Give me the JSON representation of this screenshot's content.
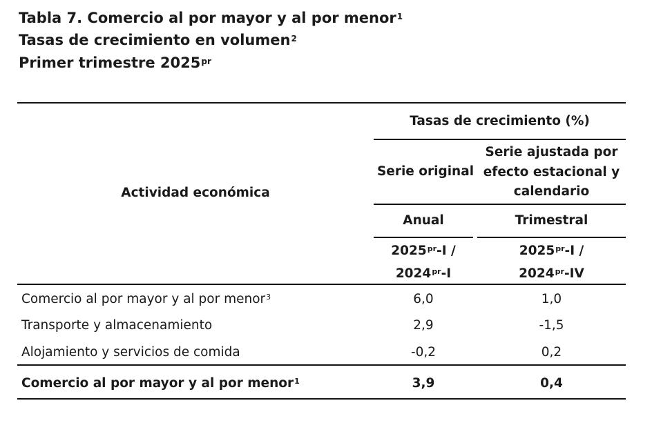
{
  "title": {
    "line1": "Tabla 7. Comercio al por mayor y al por menor",
    "line1_sup": "1",
    "line2": "Tasas de crecimiento en volumen",
    "line2_sup": "2",
    "line3": "Primer trimestre 2025",
    "line3_sup": "pr"
  },
  "header": {
    "group": "Tasas de crecimiento (%)",
    "activity": "Actividad económica",
    "col1": "Serie original",
    "col2_l1": "Serie ajustada por",
    "col2_l2": "efecto estacional y",
    "col2_l3": "calendario",
    "col1_period": "Anual",
    "col2_period": "Trimestral",
    "col1_cmp_a": "2025",
    "col1_cmp_a_sup": "pr",
    "col1_cmp_a_suffix": "-I /",
    "col1_cmp_b": "2024",
    "col1_cmp_b_sup": "pr",
    "col1_cmp_b_suffix": "-I",
    "col2_cmp_a": "2025",
    "col2_cmp_a_sup": "pr",
    "col2_cmp_a_suffix": "-I /",
    "col2_cmp_b": "2024",
    "col2_cmp_b_sup": "pr",
    "col2_cmp_b_suffix": "-IV"
  },
  "rows": [
    {
      "label": "Comercio al por mayor y al por menor",
      "sup": "3",
      "anual": "6,0",
      "trimestral": "1,0"
    },
    {
      "label": "Transporte y almacenamiento",
      "sup": "",
      "anual": "2,9",
      "trimestral": "-1,5"
    },
    {
      "label": "Alojamiento y servicios de comida",
      "sup": "",
      "anual": "-0,2",
      "trimestral": "0,2"
    }
  ],
  "total": {
    "label": "Comercio al por mayor y al por menor",
    "sup": "1",
    "anual": "3,9",
    "trimestral": "0,4"
  }
}
